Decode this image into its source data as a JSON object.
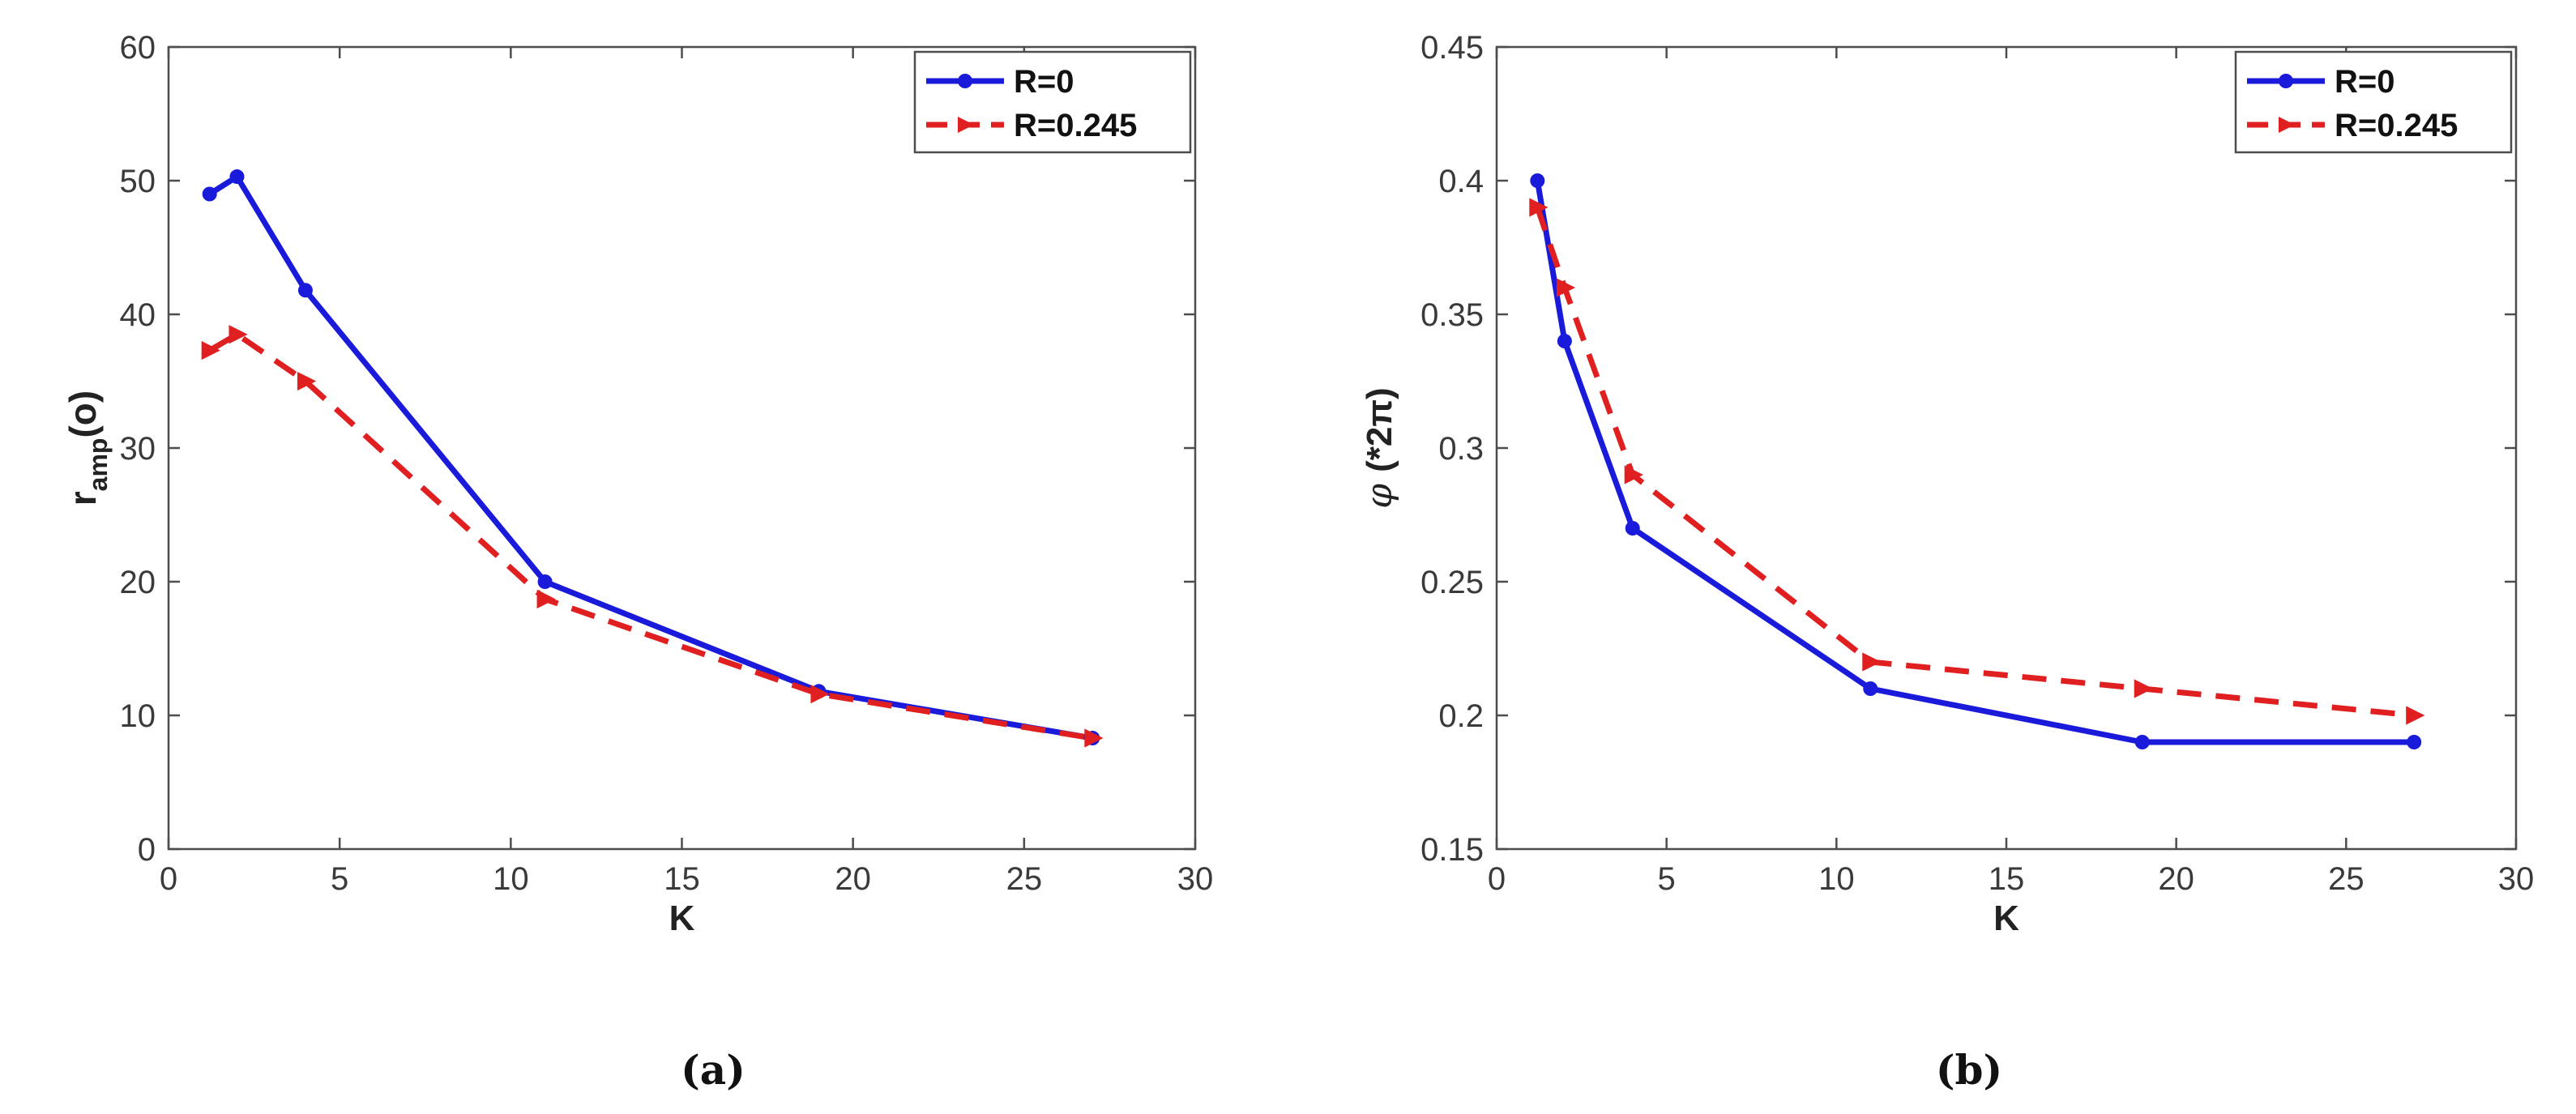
{
  "chart_data": [
    {
      "type": "line",
      "caption": "(a)",
      "title": "",
      "xlabel": "K",
      "ylabel_main": "r",
      "ylabel_sub": "amp",
      "ylabel_unit": "(o)",
      "xlim": [
        0,
        30
      ],
      "ylim": [
        0,
        60
      ],
      "xticks": [
        0,
        5,
        10,
        15,
        20,
        25,
        30
      ],
      "yticks": [
        0,
        10,
        20,
        30,
        40,
        50,
        60
      ],
      "legend_position": "top-right",
      "series": [
        {
          "name": "R=0",
          "color": "#1a1adb",
          "style": "solid",
          "marker": "circle",
          "x": [
            1.2,
            2,
            4,
            11,
            19,
            27
          ],
          "y": [
            49,
            50.3,
            41.8,
            20,
            11.8,
            8.3
          ]
        },
        {
          "name": "R=0.245",
          "color": "#e02020",
          "style": "dashed",
          "marker": "arrow",
          "x": [
            1.2,
            2,
            4,
            11,
            19,
            27
          ],
          "y": [
            37.3,
            38.5,
            35,
            18.7,
            11.6,
            8.3
          ]
        }
      ]
    },
    {
      "type": "line",
      "caption": "(b)",
      "title": "",
      "xlabel": "K",
      "ylabel_main": "φ",
      "ylabel_unit": "(*2π)",
      "xlim": [
        0,
        30
      ],
      "ylim": [
        0.15,
        0.45
      ],
      "xticks": [
        0,
        5,
        10,
        15,
        20,
        25,
        30
      ],
      "yticks": [
        0.15,
        0.2,
        0.25,
        0.3,
        0.35,
        0.4,
        0.45
      ],
      "ytick_labels": [
        "0.15",
        "0.2",
        "0.25",
        "0.3",
        "0.35",
        "0.4",
        "0.45"
      ],
      "legend_position": "top-right",
      "series": [
        {
          "name": "R=0",
          "color": "#1a1adb",
          "style": "solid",
          "marker": "circle",
          "x": [
            1.2,
            2,
            4,
            11,
            19,
            27
          ],
          "y": [
            0.4,
            0.34,
            0.27,
            0.21,
            0.19,
            0.19
          ]
        },
        {
          "name": "R=0.245",
          "color": "#e02020",
          "style": "dashed",
          "marker": "arrow",
          "x": [
            1.2,
            2,
            4,
            11,
            19,
            27
          ],
          "y": [
            0.39,
            0.36,
            0.29,
            0.22,
            0.21,
            0.2
          ]
        }
      ]
    }
  ]
}
